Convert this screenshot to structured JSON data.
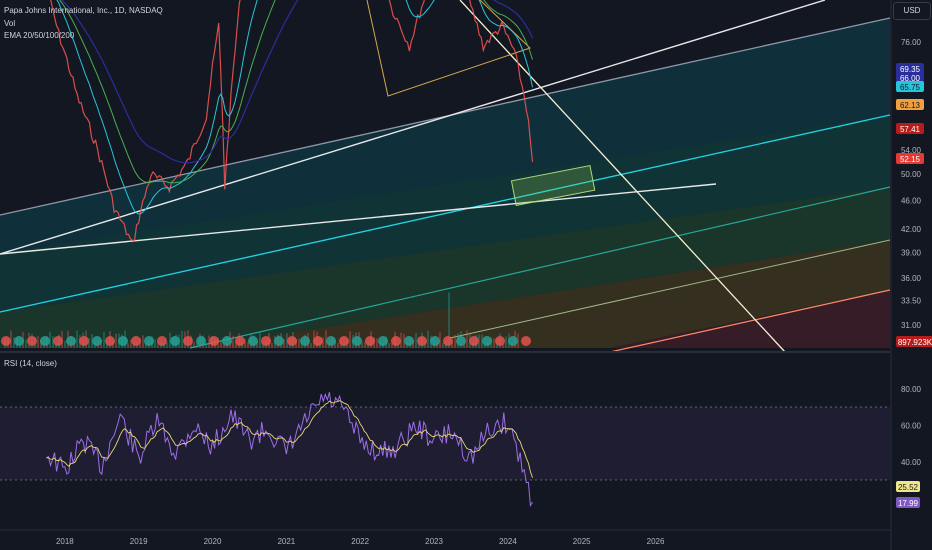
{
  "header": {
    "symbol_title": "Papa Johns International, Inc., 1D, NASDAQ",
    "vol_label": "Vol",
    "ema_label": "EMA 20/50/100/200"
  },
  "currency_button": "USD",
  "rsi_title": "RSI (14, close)",
  "chart_data": [
    {
      "type": "line",
      "name": "price-pane",
      "x_ticks": [
        "2018",
        "2019",
        "2020",
        "2021",
        "2022",
        "2023",
        "2024",
        "2025",
        "2026"
      ],
      "y_ticks": [
        76.0,
        54.0,
        50.0,
        46.0,
        42.0,
        39.0,
        36.0,
        33.5,
        31.0
      ],
      "y_scale": "log",
      "price_labels": [
        {
          "text": "69.35",
          "color": "#2a2e9c",
          "fg": "#ffffff"
        },
        {
          "text": "66.00",
          "color": "#2a2e9c",
          "fg": "#ffffff"
        },
        {
          "text": "65.75",
          "color": "#26c6da",
          "fg": "#131722"
        },
        {
          "text": "62.13",
          "color": "#f0a040",
          "fg": "#131722"
        },
        {
          "text": "57.41",
          "color": "#b71c1c",
          "fg": "#ffffff"
        },
        {
          "text": "52.15",
          "color": "#e53935",
          "fg": "#ffffff"
        },
        {
          "text": "897.923K",
          "color": "#b71c1c",
          "fg": "#ffffff"
        }
      ],
      "price_series_approx": [
        {
          "x": "2017-10",
          "y": 90
        },
        {
          "x": "2017-12",
          "y": 78
        },
        {
          "x": "2018-03",
          "y": 64
        },
        {
          "x": "2018-06",
          "y": 55
        },
        {
          "x": "2018-09",
          "y": 45
        },
        {
          "x": "2018-12",
          "y": 40
        },
        {
          "x": "2019-03",
          "y": 50
        },
        {
          "x": "2019-06",
          "y": 48
        },
        {
          "x": "2019-09",
          "y": 52
        },
        {
          "x": "2019-12",
          "y": 60
        },
        {
          "x": "2020-02",
          "y": 80
        },
        {
          "x": "2020-03",
          "y": 48
        },
        {
          "x": "2020-06",
          "y": 95
        },
        {
          "x": "2020-12",
          "y": 115
        },
        {
          "x": "2021-06",
          "y": 120
        },
        {
          "x": "2021-12",
          "y": 125
        },
        {
          "x": "2022-03",
          "y": 110
        },
        {
          "x": "2022-06",
          "y": 85
        },
        {
          "x": "2022-09",
          "y": 75
        },
        {
          "x": "2022-12",
          "y": 90
        },
        {
          "x": "2023-03",
          "y": 100
        },
        {
          "x": "2023-06",
          "y": 90
        },
        {
          "x": "2023-09",
          "y": 75
        },
        {
          "x": "2023-12",
          "y": 80
        },
        {
          "x": "2024-02",
          "y": 74
        },
        {
          "x": "2024-04",
          "y": 62
        },
        {
          "x": "2024-05",
          "y": 52
        }
      ],
      "ema_colors": [
        "#26c6da",
        "#4caf50",
        "#9c27b0",
        "#2a2e9c"
      ],
      "regression_band_colors": [
        "#00bcd4",
        "#26a69a",
        "#a5d6a7",
        "#f0a040",
        "#ef5350"
      ]
    },
    {
      "type": "line",
      "name": "rsi-pane",
      "y_ticks": [
        80.0,
        60.0,
        40.0
      ],
      "band": [
        30,
        70
      ],
      "last_labels": [
        {
          "text": "25.52",
          "color": "#f0e68c",
          "fg": "#131722"
        },
        {
          "text": "17.99",
          "color": "#7e57c2",
          "fg": "#ffffff"
        }
      ],
      "rsi_series_approx": [
        {
          "x": "2017-10",
          "y": 45
        },
        {
          "x": "2018-01",
          "y": 35
        },
        {
          "x": "2018-04",
          "y": 52
        },
        {
          "x": "2018-07",
          "y": 38
        },
        {
          "x": "2018-10",
          "y": 65
        },
        {
          "x": "2019-01",
          "y": 42
        },
        {
          "x": "2019-04",
          "y": 62
        },
        {
          "x": "2019-07",
          "y": 45
        },
        {
          "x": "2019-10",
          "y": 60
        },
        {
          "x": "2020-01",
          "y": 48
        },
        {
          "x": "2020-04",
          "y": 66
        },
        {
          "x": "2020-07",
          "y": 52
        },
        {
          "x": "2020-10",
          "y": 58
        },
        {
          "x": "2021-01",
          "y": 45
        },
        {
          "x": "2021-04",
          "y": 62
        },
        {
          "x": "2021-07",
          "y": 75
        },
        {
          "x": "2021-10",
          "y": 70
        },
        {
          "x": "2022-01",
          "y": 52
        },
        {
          "x": "2022-04",
          "y": 45
        },
        {
          "x": "2022-07",
          "y": 48
        },
        {
          "x": "2022-10",
          "y": 60
        },
        {
          "x": "2023-01",
          "y": 52
        },
        {
          "x": "2023-04",
          "y": 56
        },
        {
          "x": "2023-07",
          "y": 42
        },
        {
          "x": "2023-10",
          "y": 58
        },
        {
          "x": "2024-01",
          "y": 62
        },
        {
          "x": "2024-03",
          "y": 42
        },
        {
          "x": "2024-05",
          "y": 18
        }
      ]
    }
  ]
}
